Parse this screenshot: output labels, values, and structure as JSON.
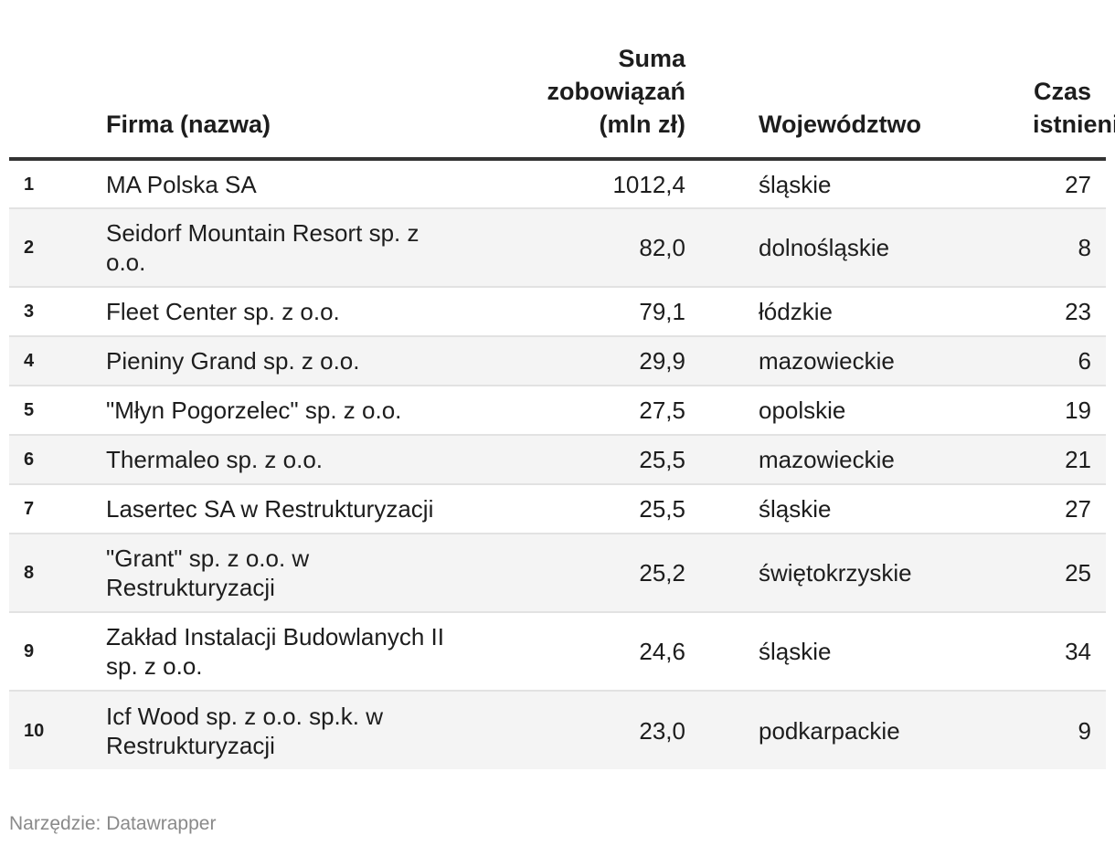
{
  "chart_data": {
    "type": "table",
    "columns": [
      {
        "key": "rank",
        "label": ""
      },
      {
        "key": "name",
        "label": "Firma (nazwa)"
      },
      {
        "key": "debt",
        "label": "Suma zobowiązań (mln zł)"
      },
      {
        "key": "voivodeship",
        "label": "Województwo"
      },
      {
        "key": "age",
        "label": "Czas istnienia"
      }
    ],
    "rows": [
      {
        "rank": "1",
        "name": "MA Polska SA",
        "debt": "1012,4",
        "voivodeship": "śląskie",
        "age": "27"
      },
      {
        "rank": "2",
        "name": "Seidorf Mountain Resort sp. z o.o.",
        "debt": "82,0",
        "voivodeship": "dolnośląskie",
        "age": "8"
      },
      {
        "rank": "3",
        "name": "Fleet Center sp. z o.o.",
        "debt": "79,1",
        "voivodeship": "łódzkie",
        "age": "23"
      },
      {
        "rank": "4",
        "name": "Pieniny Grand sp. z o.o.",
        "debt": "29,9",
        "voivodeship": "mazowieckie",
        "age": "6"
      },
      {
        "rank": "5",
        "name": "\"Młyn Pogorzelec\" sp. z o.o.",
        "debt": "27,5",
        "voivodeship": "opolskie",
        "age": "19"
      },
      {
        "rank": "6",
        "name": "Thermaleo sp. z o.o.",
        "debt": "25,5",
        "voivodeship": "mazowieckie",
        "age": "21"
      },
      {
        "rank": "7",
        "name": "Lasertec SA w Restrukturyzacji",
        "debt": "25,5",
        "voivodeship": "śląskie",
        "age": "27"
      },
      {
        "rank": "8",
        "name": "\"Grant\" sp. z o.o. w Restrukturyzacji",
        "debt": "25,2",
        "voivodeship": "świętokrzyskie",
        "age": "25"
      },
      {
        "rank": "9",
        "name": "Zakład Instalacji Budowlanych II sp. z o.o.",
        "debt": "24,6",
        "voivodeship": "śląskie",
        "age": "34"
      },
      {
        "rank": "10",
        "name": "Icf Wood sp. z o.o. sp.k. w Restrukturyzacji",
        "debt": "23,0",
        "voivodeship": "podkarpackie",
        "age": "9"
      }
    ]
  },
  "footer": {
    "source": "Narzędzie: Datawrapper"
  }
}
